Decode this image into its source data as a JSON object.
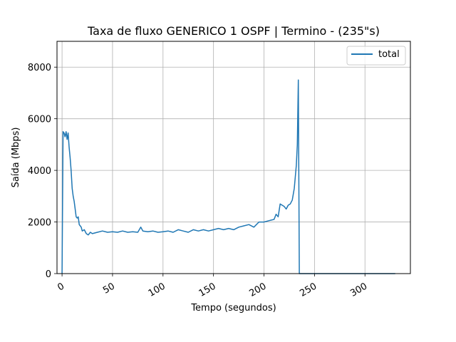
{
  "chart_data": {
    "type": "line",
    "title": "Taxa de fluxo GENERICO 1 OSPF | Termino - (235\"s)",
    "xlabel": "Tempo (segundos)",
    "ylabel": "Saída (Mbps)",
    "xlim": [
      -5,
      345
    ],
    "ylim": [
      0,
      9000
    ],
    "xticks": [
      0,
      50,
      100,
      150,
      200,
      250,
      300
    ],
    "yticks": [
      0,
      2000,
      4000,
      6000,
      8000
    ],
    "grid": true,
    "legend_position": "top-right",
    "line_color": "#1f77b4",
    "series": [
      {
        "name": "total",
        "x": [
          0,
          1,
          2,
          3,
          4,
          5,
          6,
          7,
          8,
          9,
          10,
          11,
          12,
          13,
          14,
          15,
          16,
          17,
          18,
          19,
          20,
          22,
          24,
          26,
          28,
          30,
          35,
          40,
          45,
          50,
          55,
          60,
          65,
          70,
          75,
          78,
          80,
          85,
          90,
          95,
          100,
          105,
          110,
          115,
          120,
          125,
          130,
          135,
          140,
          145,
          150,
          155,
          160,
          165,
          170,
          175,
          180,
          185,
          190,
          195,
          200,
          205,
          210,
          212,
          214,
          216,
          218,
          220,
          222,
          224,
          226,
          228,
          230,
          232,
          233,
          234,
          235,
          236,
          238,
          240,
          260,
          280,
          300,
          320,
          330
        ],
        "y": [
          0,
          5500,
          5450,
          5300,
          5500,
          5200,
          5450,
          4900,
          4500,
          4000,
          3300,
          3000,
          2800,
          2500,
          2200,
          2150,
          2200,
          1900,
          1850,
          1800,
          1650,
          1700,
          1550,
          1500,
          1600,
          1550,
          1600,
          1650,
          1600,
          1620,
          1600,
          1650,
          1600,
          1620,
          1600,
          1800,
          1650,
          1620,
          1650,
          1600,
          1620,
          1650,
          1600,
          1700,
          1650,
          1600,
          1700,
          1650,
          1700,
          1650,
          1700,
          1750,
          1700,
          1750,
          1700,
          1800,
          1850,
          1900,
          1800,
          2000,
          2000,
          2050,
          2100,
          2300,
          2200,
          2700,
          2650,
          2600,
          2500,
          2650,
          2700,
          2850,
          3300,
          4200,
          5000,
          7500,
          0,
          0,
          0,
          0,
          0,
          0,
          0,
          0,
          0
        ]
      }
    ]
  }
}
